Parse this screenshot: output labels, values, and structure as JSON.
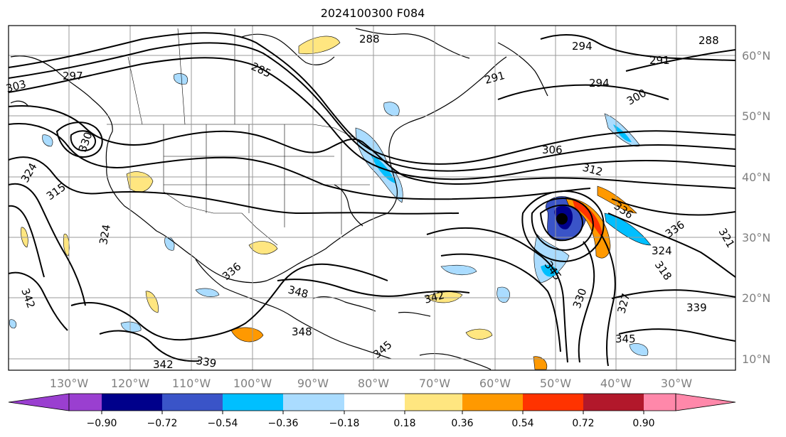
{
  "title": "2024100300 F084",
  "longitude_labels": [
    "130°W",
    "120°W",
    "110°W",
    "100°W",
    "90°W",
    "80°W",
    "70°W",
    "60°W",
    "50°W",
    "40°W",
    "30°W"
  ],
  "latitude_labels": [
    "60°N",
    "50°N",
    "40°N",
    "30°N",
    "20°N",
    "10°N"
  ],
  "contour_labels": [
    {
      "text": "288"
    },
    {
      "text": "285"
    },
    {
      "text": "297"
    },
    {
      "text": "303"
    },
    {
      "text": "291"
    },
    {
      "text": "294"
    },
    {
      "text": "288"
    },
    {
      "text": "291"
    },
    {
      "text": "294"
    },
    {
      "text": "300"
    },
    {
      "text": "306"
    },
    {
      "text": "312"
    },
    {
      "text": "315"
    },
    {
      "text": "324"
    },
    {
      "text": "324"
    },
    {
      "text": "336"
    },
    {
      "text": "336"
    },
    {
      "text": "324"
    },
    {
      "text": "318"
    },
    {
      "text": "321"
    },
    {
      "text": "342"
    },
    {
      "text": "348"
    },
    {
      "text": "348"
    },
    {
      "text": "342"
    },
    {
      "text": "345"
    },
    {
      "text": "330"
    },
    {
      "text": "327"
    },
    {
      "text": "339"
    },
    {
      "text": "345"
    },
    {
      "text": "339"
    },
    {
      "text": "342"
    },
    {
      "text": "336"
    },
    {
      "text": "330"
    },
    {
      "text": "345"
    }
  ],
  "colorbar": {
    "tick_labels": [
      "−0.90",
      "−0.72",
      "−0.54",
      "−0.36",
      "−0.18",
      "0.18",
      "0.36",
      "0.54",
      "0.72",
      "0.90"
    ],
    "colors": [
      "#9a3fd0",
      "#00008b",
      "#3a54c8",
      "#00bfff",
      "#aadcff",
      "#ffffff",
      "#ffe680",
      "#ff9900",
      "#ff3300",
      "#b2182b",
      "#ff88aa"
    ]
  },
  "shading_colors": {
    "light_blue": "#aadcff",
    "cyan": "#00bfff",
    "blue": "#3a54c8",
    "navy": "#00008b",
    "light_yellow": "#ffe680",
    "orange": "#ff9900",
    "red": "#ff3300"
  }
}
